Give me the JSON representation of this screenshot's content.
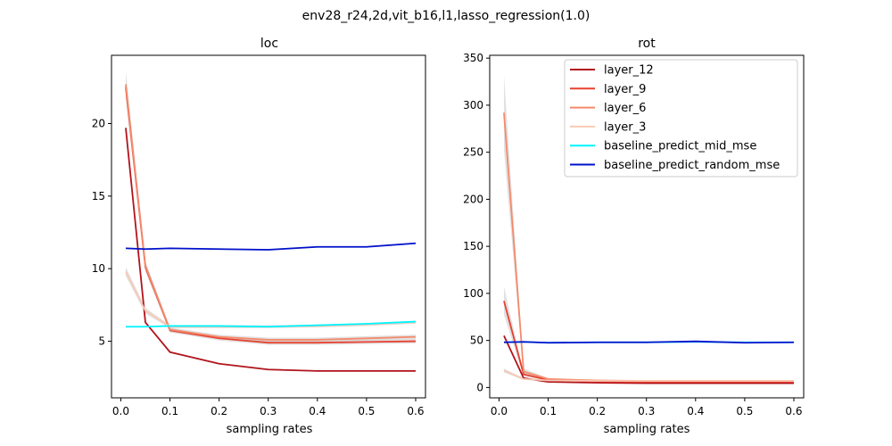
{
  "figure": {
    "suptitle": "env28_r24,2d,vit_b16,l1,lasso_regression(1.0)"
  },
  "colors": {
    "layer_12": "#b2141c",
    "layer_9": "#e8412f",
    "layer_6": "#f58a6c",
    "layer_3": "#f9c9b4",
    "baseline_predict_mid_mse": "#00f5ff",
    "baseline_predict_random_mse": "#0011cc",
    "band": "#c8c8c8"
  },
  "chart_data": [
    {
      "type": "line",
      "title": "loc",
      "xlabel": "sampling rates",
      "ylabel": "",
      "xlim": [
        -0.019,
        0.62
      ],
      "ylim": [
        1.1,
        24.7
      ],
      "xticks": [
        0.0,
        0.1,
        0.2,
        0.3,
        0.4,
        0.5,
        0.6
      ],
      "xticklabels": [
        "0.0",
        "0.1",
        "0.2",
        "0.3",
        "0.4",
        "0.5",
        "0.6"
      ],
      "yticks": [
        5,
        10,
        15,
        20
      ],
      "yticklabels": [
        "5",
        "10",
        "15",
        "20"
      ],
      "x": [
        0.01,
        0.05,
        0.1,
        0.2,
        0.3,
        0.4,
        0.5,
        0.6
      ],
      "series": [
        {
          "name": "layer_12",
          "color_key": "layer_12",
          "values": [
            19.7,
            6.3,
            4.25,
            3.45,
            3.05,
            2.95,
            2.95,
            2.95
          ],
          "band": [
            0.2,
            0.1,
            0.05,
            0.05,
            0.05,
            0.05,
            0.05,
            0.05
          ]
        },
        {
          "name": "layer_9",
          "color_key": "layer_9",
          "values": [
            22.5,
            10.1,
            5.75,
            5.2,
            4.9,
            4.9,
            4.95,
            5.0
          ],
          "band": [
            0.7,
            0.3,
            0.15,
            0.15,
            0.15,
            0.15,
            0.15,
            0.15
          ]
        },
        {
          "name": "layer_6",
          "color_key": "layer_6",
          "values": [
            22.7,
            10.2,
            5.8,
            5.3,
            5.1,
            5.1,
            5.2,
            5.3
          ],
          "band": [
            0.9,
            0.3,
            0.15,
            0.15,
            0.15,
            0.15,
            0.15,
            0.15
          ]
        },
        {
          "name": "layer_3",
          "color_key": "layer_3",
          "values": [
            9.8,
            7.1,
            6.0,
            6.0,
            6.0,
            6.05,
            6.15,
            6.3
          ],
          "band": [
            0.3,
            0.2,
            0.1,
            0.1,
            0.1,
            0.1,
            0.1,
            0.1
          ]
        },
        {
          "name": "baseline_predict_mid_mse",
          "color_key": "baseline_predict_mid_mse",
          "values": [
            6.0,
            6.0,
            6.05,
            6.05,
            6.0,
            6.1,
            6.2,
            6.35
          ],
          "band": [
            0.05,
            0.05,
            0.05,
            0.05,
            0.05,
            0.05,
            0.05,
            0.05
          ]
        },
        {
          "name": "baseline_predict_random_mse",
          "color_key": "baseline_predict_random_mse",
          "values": [
            11.4,
            11.35,
            11.4,
            11.35,
            11.3,
            11.5,
            11.5,
            11.75
          ],
          "band": [
            0.05,
            0.05,
            0.05,
            0.05,
            0.05,
            0.05,
            0.05,
            0.05
          ]
        }
      ]
    },
    {
      "type": "line",
      "title": "rot",
      "xlabel": "sampling rates",
      "ylabel": "",
      "xlim": [
        -0.019,
        0.62
      ],
      "ylim": [
        -11,
        353
      ],
      "xticks": [
        0.0,
        0.1,
        0.2,
        0.3,
        0.4,
        0.5,
        0.6
      ],
      "xticklabels": [
        "0.0",
        "0.1",
        "0.2",
        "0.3",
        "0.4",
        "0.5",
        "0.6"
      ],
      "yticks": [
        0,
        50,
        100,
        150,
        200,
        250,
        300,
        350
      ],
      "yticklabels": [
        "0",
        "50",
        "100",
        "150",
        "200",
        "250",
        "300",
        "350"
      ],
      "x": [
        0.01,
        0.05,
        0.1,
        0.2,
        0.3,
        0.4,
        0.5,
        0.6
      ],
      "legend": {
        "position": "upper-right",
        "entries": [
          "layer_12",
          "layer_9",
          "layer_6",
          "layer_3",
          "baseline_predict_mid_mse",
          "baseline_predict_random_mse"
        ]
      },
      "series": [
        {
          "name": "layer_12",
          "color_key": "layer_12",
          "values": [
            55,
            10,
            6,
            5,
            4.5,
            4.5,
            4.5,
            4.5
          ],
          "band": [
            2,
            1,
            0.5,
            0.5,
            0.5,
            0.5,
            0.5,
            0.5
          ]
        },
        {
          "name": "layer_9",
          "color_key": "layer_9",
          "values": [
            92,
            14,
            8,
            6.5,
            6,
            6,
            6,
            6
          ],
          "band": [
            15,
            2,
            1,
            0.5,
            0.5,
            0.5,
            0.5,
            0.5
          ]
        },
        {
          "name": "layer_6",
          "color_key": "layer_6",
          "values": [
            292,
            17,
            9,
            7.5,
            7,
            7,
            7,
            7
          ],
          "band": [
            40,
            3,
            1,
            0.5,
            0.5,
            0.5,
            0.5,
            0.5
          ]
        },
        {
          "name": "layer_3",
          "color_key": "layer_3",
          "values": [
            18,
            9,
            7.5,
            7,
            7,
            7,
            7,
            7
          ],
          "band": [
            2,
            1,
            0.5,
            0.5,
            0.5,
            0.5,
            0.5,
            0.5
          ]
        },
        {
          "name": "baseline_predict_mid_mse",
          "color_key": "baseline_predict_mid_mse",
          "values": [
            48,
            48.5,
            47.5,
            48,
            48,
            48.5,
            48,
            48
          ],
          "band": [
            0.5,
            0.5,
            0.5,
            0.5,
            0.5,
            0.5,
            0.5,
            0.5
          ]
        },
        {
          "name": "baseline_predict_random_mse",
          "color_key": "baseline_predict_random_mse",
          "values": [
            48,
            48.5,
            47.5,
            48,
            48,
            49,
            47.5,
            48
          ],
          "band": [
            0.5,
            0.5,
            0.5,
            0.5,
            0.5,
            0.5,
            0.5,
            0.5
          ]
        }
      ]
    }
  ]
}
